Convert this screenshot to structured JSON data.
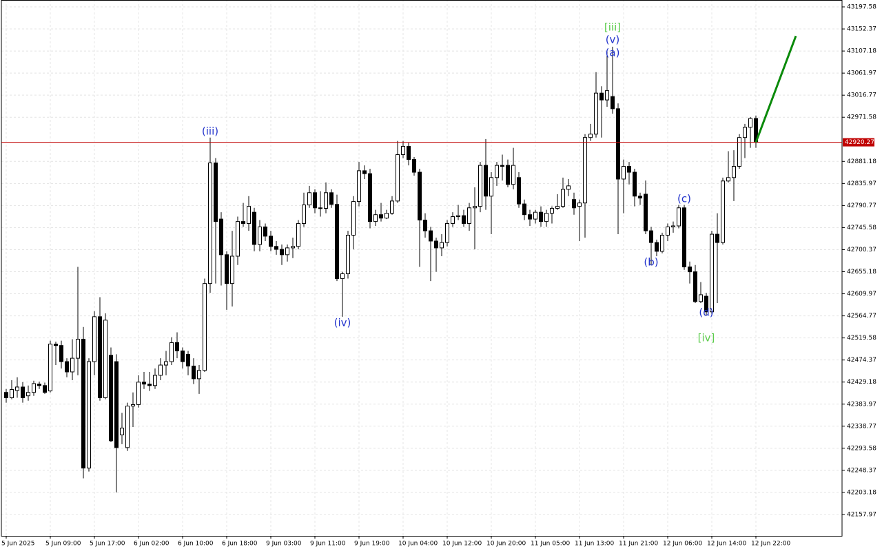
{
  "chart_data": {
    "type": "candlestick",
    "categories": [
      "5 Jun 2025",
      null,
      null,
      null,
      null,
      null,
      null,
      null,
      "5 Jun 09:00",
      null,
      null,
      null,
      null,
      null,
      null,
      null,
      "5 Jun 17:00",
      null,
      null,
      null,
      null,
      null,
      null,
      null,
      "6 Jun 02:00",
      null,
      null,
      null,
      null,
      null,
      null,
      null,
      "6 Jun 10:00",
      null,
      null,
      null,
      null,
      null,
      null,
      null,
      "6 Jun 18:00",
      null,
      null,
      null,
      null,
      null,
      null,
      null,
      "9 Jun 03:00",
      null,
      null,
      null,
      null,
      null,
      null,
      null,
      "9 Jun 11:00",
      null,
      null,
      null,
      null,
      null,
      null,
      null,
      "9 Jun 19:00",
      null,
      null,
      null,
      null,
      null,
      null,
      null,
      "10 Jun 04:00",
      null,
      null,
      null,
      null,
      null,
      null,
      null,
      "10 Jun 12:00",
      null,
      null,
      null,
      null,
      null,
      null,
      null,
      "10 Jun 20:00",
      null,
      null,
      null,
      null,
      null,
      null,
      null,
      "11 Jun 05:00",
      null,
      null,
      null,
      null,
      null,
      null,
      null,
      "11 Jun 13:00",
      null,
      null,
      null,
      null,
      null,
      null,
      null,
      "11 Jun 21:00",
      null,
      null,
      null,
      null,
      null,
      null,
      null,
      "12 Jun 06:00",
      null,
      null,
      null,
      null,
      null,
      null,
      null,
      "12 Jun 14:00",
      null,
      null,
      null,
      null,
      null,
      null,
      null,
      "12 Jun 22:00"
    ],
    "open": [
      42408,
      42397,
      42412,
      42419,
      42401,
      42408,
      42425,
      42422,
      42411,
      42507,
      42504,
      42471,
      42450,
      42478,
      42517,
      42253,
      42471,
      42563,
      42397,
      42484,
      42471,
      42321,
      42295,
      42380,
      42383,
      42429,
      42425,
      42422,
      42443,
      42464,
      42471,
      42510,
      42493,
      42486,
      42462,
      42436,
      42453,
      42631,
      42878,
      42763,
      42690,
      42631,
      42687,
      42758,
      42754,
      42777,
      42711,
      42747,
      42728,
      42707,
      42701,
      42690,
      42704,
      42707,
      42754,
      42792,
      42817,
      42786,
      42785,
      42817,
      42793,
      42641,
      42651,
      42730,
      42799,
      42862,
      42856,
      42758,
      42772,
      42765,
      42775,
      42800,
      42895,
      42912,
      42885,
      42859,
      42761,
      42739,
      42718,
      42704,
      42715,
      42754,
      42768,
      42770,
      42754,
      42786,
      42789,
      42873,
      42810,
      42848,
      42873,
      42873,
      42834,
      42848,
      42794,
      42772,
      42763,
      42777,
      42758,
      42775,
      42785,
      42789,
      42824,
      42803,
      42789,
      42796,
      42930,
      42937,
      43021,
      43007,
      43014,
      42989,
      42845,
      42871,
      42859,
      42810,
      42814,
      42739,
      42715,
      42697,
      42730,
      42747,
      42749,
      42786,
      42665,
      42655,
      42594,
      42605,
      42573,
      42732,
      42715,
      42841,
      42848,
      42871,
      42930,
      42951,
      42969
    ],
    "high": [
      42415,
      42433,
      42439,
      42429,
      42422,
      42432,
      42430,
      42428,
      42514,
      42512,
      42514,
      42478,
      42517,
      42665,
      42542,
      42478,
      42574,
      42603,
      42570,
      42500,
      42486,
      42366,
      42387,
      42408,
      42443,
      42450,
      42450,
      42457,
      42478,
      42493,
      42521,
      42531,
      42500,
      42493,
      42478,
      42464,
      42641,
      42930,
      42888,
      42777,
      42697,
      42739,
      42768,
      42796,
      42810,
      42786,
      42761,
      42754,
      42739,
      42718,
      42711,
      42711,
      42725,
      42761,
      42817,
      42831,
      42824,
      42820,
      42838,
      42824,
      42813,
      42655,
      42739,
      42810,
      42880,
      42873,
      42866,
      42782,
      42796,
      42782,
      42810,
      42923,
      42923,
      42919,
      42890,
      42866,
      42775,
      42747,
      42725,
      42732,
      42761,
      42777,
      42792,
      42782,
      42796,
      42828,
      42880,
      42927,
      42859,
      42880,
      42895,
      42885,
      42909,
      42859,
      42803,
      42782,
      42782,
      42789,
      42782,
      42789,
      42814,
      42848,
      42845,
      42817,
      42803,
      42937,
      42958,
      43064,
      43035,
      43110,
      43116,
      43000,
      42885,
      42880,
      42866,
      42817,
      42842,
      42747,
      42721,
      42735,
      42754,
      42758,
      42792,
      42792,
      42676,
      42669,
      42634,
      42612,
      42739,
      42775,
      42848,
      42902,
      42904,
      42937,
      42958,
      42972,
      42975
    ],
    "low": [
      42387,
      42394,
      42397,
      42387,
      42391,
      42401,
      42415,
      42405,
      42408,
      42464,
      42457,
      42439,
      42433,
      42443,
      42232,
      42246,
      42443,
      42391,
      42394,
      42306,
      42203,
      42302,
      42288,
      42337,
      42377,
      42415,
      42411,
      42415,
      42433,
      42443,
      42464,
      42478,
      42457,
      42443,
      42425,
      42405,
      42450,
      42612,
      42631,
      42627,
      42577,
      42584,
      42669,
      42747,
      42739,
      42697,
      42697,
      42718,
      42697,
      42690,
      42669,
      42676,
      42683,
      42701,
      42747,
      42786,
      42775,
      42768,
      42775,
      42786,
      42636,
      42563,
      42641,
      42701,
      42789,
      42845,
      42744,
      42749,
      42758,
      42763,
      42772,
      42796,
      42888,
      42873,
      42852,
      42665,
      42725,
      42636,
      42655,
      42687,
      42707,
      42747,
      42761,
      42747,
      42739,
      42701,
      42777,
      42782,
      42732,
      42831,
      42842,
      42828,
      42824,
      42786,
      42761,
      42749,
      42754,
      42747,
      42747,
      42754,
      42782,
      42786,
      42810,
      42772,
      42718,
      42725,
      42923,
      42930,
      42930,
      42993,
      42979,
      42732,
      42775,
      42834,
      42789,
      42792,
      42732,
      42669,
      42687,
      42693,
      42718,
      42735,
      42744,
      42659,
      42631,
      42591,
      42591,
      42566,
      42566,
      42591,
      42711,
      42838,
      42800,
      42866,
      42888,
      42909,
      42909
    ],
    "close": [
      42397,
      42414,
      42419,
      42397,
      42408,
      42426,
      42422,
      42408,
      42507,
      42504,
      42471,
      42450,
      42478,
      42517,
      42253,
      42471,
      42563,
      42397,
      42556,
      42309,
      42295,
      42335,
      42380,
      42383,
      42429,
      42425,
      42422,
      42443,
      42464,
      42471,
      42510,
      42493,
      42471,
      42462,
      42436,
      42453,
      42631,
      42878,
      42758,
      42690,
      42631,
      42687,
      42758,
      42754,
      42789,
      42711,
      42747,
      42728,
      42707,
      42701,
      42690,
      42704,
      42707,
      42754,
      42792,
      42817,
      42786,
      42785,
      42817,
      42793,
      42641,
      42651,
      42730,
      42799,
      42862,
      42856,
      42758,
      42772,
      42765,
      42775,
      42800,
      42895,
      42912,
      42885,
      42859,
      42761,
      42739,
      42718,
      42704,
      42715,
      42754,
      42768,
      42770,
      42754,
      42786,
      42789,
      42873,
      42810,
      42848,
      42873,
      42871,
      42834,
      42873,
      42794,
      42772,
      42763,
      42777,
      42758,
      42775,
      42785,
      42789,
      42824,
      42831,
      42786,
      42796,
      42930,
      42937,
      43021,
      43007,
      43026,
      42989,
      42845,
      42871,
      42859,
      42810,
      42806,
      42739,
      42715,
      42697,
      42730,
      42747,
      42749,
      42786,
      42665,
      42655,
      42594,
      42608,
      42573,
      42732,
      42715,
      42841,
      42848,
      42871,
      42930,
      42951,
      42969,
      42920.27
    ],
    "up_color": "#ffffff",
    "down_color": "#000000",
    "ylim": [
      42114.2,
      43211.7
    ],
    "yticks": [
      43197.58,
      43152.37,
      43107.18,
      43061.97,
      43016.77,
      42971.58,
      42881.18,
      42835.97,
      42790.77,
      42745.58,
      42700.37,
      42655.18,
      42609.97,
      42564.77,
      42519.58,
      42474.37,
      42429.18,
      42383.97,
      42338.77,
      42293.58,
      42248.37,
      42203.18,
      42157.97
    ],
    "grid": true,
    "current_price": {
      "value": 42920.27,
      "color": "#c00000"
    },
    "annotations": [
      {
        "text": "[iii]",
        "x": 110,
        "y": 43155,
        "color": "#5ccc4c"
      },
      {
        "text": "(v)",
        "x": 110,
        "y": 43130,
        "color": "#2233cc"
      },
      {
        "text": "(a)",
        "x": 110,
        "y": 43103,
        "color": "#2233cc"
      },
      {
        "text": "(iii)",
        "x": 37,
        "y": 42942,
        "color": "#2233cc"
      },
      {
        "text": "(iv)",
        "x": 61,
        "y": 42550,
        "color": "#2233cc"
      },
      {
        "text": "(b)",
        "x": 117,
        "y": 42674,
        "color": "#2233cc"
      },
      {
        "text": "(c)",
        "x": 123,
        "y": 42804,
        "color": "#2233cc"
      },
      {
        "text": "(d)",
        "x": 127,
        "y": 42571,
        "color": "#2233cc"
      },
      {
        "text": "[iv]",
        "x": 127,
        "y": 42519,
        "color": "#5ccc4c"
      }
    ],
    "projection": {
      "x": [
        136,
        143.25
      ],
      "y": [
        42920.27,
        43138
      ],
      "color": "#0a8a0a"
    }
  }
}
